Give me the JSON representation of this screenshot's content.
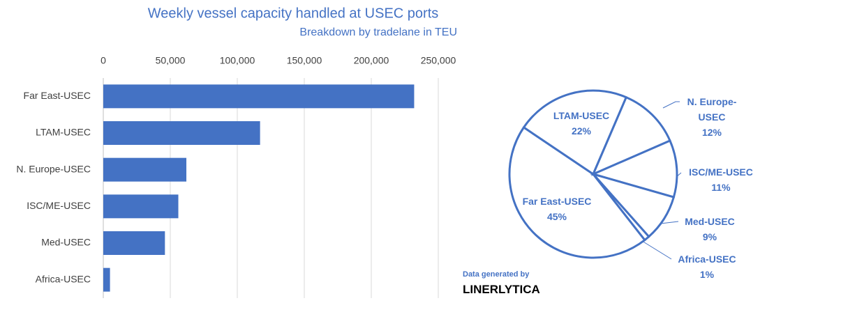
{
  "chart_data": [
    {
      "type": "bar",
      "orientation": "horizontal",
      "title": "Weekly vessel capacity handled at USEC ports",
      "subtitle": "Breakdown by tradelane in TEU",
      "categories": [
        "Far East-USEC",
        "LTAM-USEC",
        "N. Europe-USEC",
        "ISC/ME-USEC",
        "Med-USEC",
        "Africa-USEC"
      ],
      "values": [
        232000,
        117000,
        62000,
        56000,
        46000,
        5000
      ],
      "color": "#4472c4",
      "xlim": [
        0,
        250000
      ],
      "xticks": [
        0,
        {
          "value": 50000,
          "label": "50,000"
        },
        {
          "value": 100000,
          "label": "100,000"
        },
        {
          "value": 150000,
          "label": "150,000"
        },
        {
          "value": 200000,
          "label": "200,000"
        },
        {
          "value": 250000,
          "label": "250,000"
        }
      ],
      "grid": true
    },
    {
      "type": "pie",
      "categories": [
        "Far East-USEC",
        "LTAM-USEC",
        "N. Europe-USEC",
        "ISC/ME-USEC",
        "Med-USEC",
        "Africa-USEC"
      ],
      "values": [
        45,
        22,
        12,
        11,
        9,
        1
      ],
      "value_labels": [
        "45%",
        "22%",
        "12%",
        "11%",
        "9%",
        "1%"
      ],
      "color": "#4472c4"
    }
  ],
  "credit": {
    "label": "Data generated by",
    "brand": "LINERLYTICA"
  }
}
